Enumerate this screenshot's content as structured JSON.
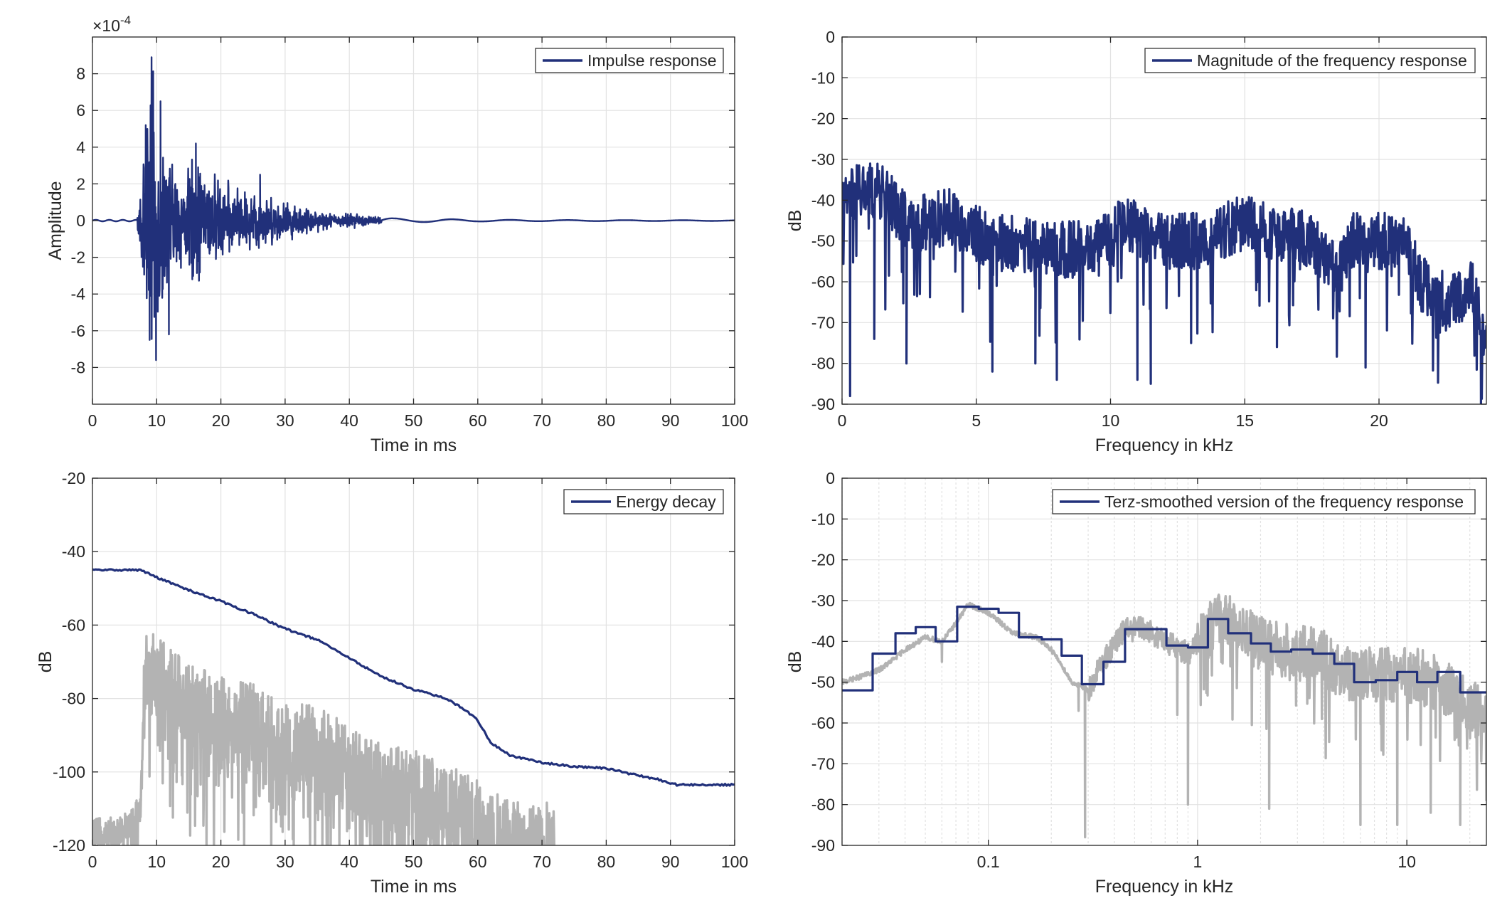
{
  "colors": {
    "series_main": "#21307a",
    "series_gray": "#b3b3b3",
    "axis": "#262626",
    "grid": "#e2e2e2"
  },
  "chart_data": [
    {
      "id": "impulse",
      "type": "line",
      "xlabel": "Time in ms",
      "ylabel": "Amplitude",
      "exponent_label": "×10",
      "exponent_power": "-4",
      "xlim": [
        0,
        100
      ],
      "ylim": [
        -10,
        10
      ],
      "xticks": [
        0,
        10,
        20,
        30,
        40,
        50,
        60,
        70,
        80,
        90,
        100
      ],
      "yticks": [
        -8,
        -6,
        -4,
        -2,
        0,
        2,
        4,
        6,
        8
      ],
      "xscale": "linear",
      "grid": true,
      "legend_position": "top-right",
      "series": [
        {
          "name": "Impulse response",
          "color": "main",
          "style": "oscillation",
          "envelope": [
            [
              0,
              0.06
            ],
            [
              6.8,
              0.1
            ],
            [
              7.5,
              2.5
            ],
            [
              8.4,
              5.2
            ],
            [
              9.2,
              8.9
            ],
            [
              10,
              6.5
            ],
            [
              11,
              5
            ],
            [
              12.5,
              3.5
            ],
            [
              14,
              2.8
            ],
            [
              16,
              4.2
            ],
            [
              17.5,
              3.2
            ],
            [
              19,
              2.8
            ],
            [
              21,
              2.3
            ],
            [
              24,
              1.8
            ],
            [
              26,
              1.9
            ],
            [
              28,
              1.4
            ],
            [
              30,
              1.2
            ],
            [
              33,
              0.9
            ],
            [
              36,
              0.6
            ],
            [
              38,
              0.35
            ],
            [
              40,
              0.5
            ],
            [
              43,
              0.3
            ],
            [
              47,
              0.15
            ],
            [
              50,
              0.1
            ],
            [
              55,
              0.1
            ],
            [
              60,
              0.06
            ],
            [
              70,
              0.04
            ],
            [
              100,
              0.02
            ]
          ],
          "peaks": [
            [
              9.2,
              8.9
            ],
            [
              9.9,
              -7.6
            ],
            [
              10.6,
              6.5
            ],
            [
              11.9,
              -6.2
            ],
            [
              16.1,
              4.2
            ],
            [
              26.1,
              2.5
            ],
            [
              8.9,
              -6.5
            ],
            [
              8.3,
              5.2
            ]
          ]
        }
      ]
    },
    {
      "id": "magnitude",
      "type": "line",
      "xlabel": "Frequency in kHz",
      "ylabel": "dB",
      "xlim": [
        0,
        24
      ],
      "ylim": [
        -90,
        0
      ],
      "xticks": [
        0,
        5,
        10,
        15,
        20
      ],
      "yticks": [
        0,
        -10,
        -20,
        -30,
        -40,
        -50,
        -60,
        -70,
        -80,
        -90
      ],
      "xscale": "linear",
      "grid": true,
      "legend_position": "top-right",
      "series": [
        {
          "name": "Magnitude of the frequency response",
          "color": "main",
          "style": "noisy",
          "baseline": [
            [
              0,
              -42
            ],
            [
              0.5,
              -38
            ],
            [
              1.5,
              -38
            ],
            [
              2.5,
              -46
            ],
            [
              4,
              -44
            ],
            [
              5.5,
              -50
            ],
            [
              8,
              -52
            ],
            [
              9.5,
              -52
            ],
            [
              10.5,
              -46
            ],
            [
              12,
              -50
            ],
            [
              13.5,
              -50
            ],
            [
              15,
              -45
            ],
            [
              16.5,
              -50
            ],
            [
              17,
              -48
            ],
            [
              18.5,
              -57
            ],
            [
              19,
              -50
            ],
            [
              21,
              -50
            ],
            [
              21.5,
              -60
            ],
            [
              22.5,
              -65
            ],
            [
              23.5,
              -62
            ],
            [
              24,
              -75
            ]
          ],
          "dips": [
            [
              0.3,
              -88
            ],
            [
              1.2,
              -74
            ],
            [
              2.4,
              -80
            ],
            [
              5.6,
              -82
            ],
            [
              7.2,
              -80
            ],
            [
              8,
              -84
            ],
            [
              11,
              -84
            ],
            [
              11.5,
              -85
            ],
            [
              13,
              -75
            ],
            [
              16.2,
              -76
            ],
            [
              19.5,
              -81
            ],
            [
              23.8,
              -90
            ]
          ]
        }
      ]
    },
    {
      "id": "energy",
      "type": "line",
      "xlabel": "Time in ms",
      "ylabel": "dB",
      "xlim": [
        0,
        100
      ],
      "ylim": [
        -120,
        -20
      ],
      "xticks": [
        0,
        10,
        20,
        30,
        40,
        50,
        60,
        70,
        80,
        90,
        100
      ],
      "yticks": [
        -20,
        -40,
        -60,
        -80,
        -100,
        -120
      ],
      "xscale": "linear",
      "grid": true,
      "legend_position": "top-right",
      "series": [
        {
          "name": "",
          "color": "gray",
          "style": "noisy",
          "baseline": [
            [
              0,
              -117
            ],
            [
              5,
              -115
            ],
            [
              7.5,
              -110
            ],
            [
              8.2,
              -72
            ],
            [
              10,
              -75
            ],
            [
              15,
              -82
            ],
            [
              20,
              -86
            ],
            [
              25,
              -88
            ],
            [
              30,
              -93
            ],
            [
              35,
              -94
            ],
            [
              40,
              -99
            ],
            [
              45,
              -104
            ],
            [
              50,
              -106
            ],
            [
              55,
              -110
            ],
            [
              58,
              -112
            ],
            [
              62,
              -117
            ],
            [
              65,
              -120
            ],
            [
              68,
              -120
            ],
            [
              72,
              -120
            ]
          ],
          "dips": []
        },
        {
          "name": "Energy decay",
          "color": "main",
          "style": "smooth",
          "points": [
            [
              0,
              -45
            ],
            [
              7.5,
              -45
            ],
            [
              10,
              -47
            ],
            [
              15,
              -50.5
            ],
            [
              20,
              -53.5
            ],
            [
              25,
              -57
            ],
            [
              30,
              -61
            ],
            [
              35,
              -64
            ],
            [
              40,
              -69
            ],
            [
              45,
              -74
            ],
            [
              50,
              -77.5
            ],
            [
              55,
              -80
            ],
            [
              58,
              -83
            ],
            [
              60,
              -86
            ],
            [
              62,
              -92
            ],
            [
              65,
              -95.5
            ],
            [
              70,
              -97.5
            ],
            [
              75,
              -98.5
            ],
            [
              80,
              -99
            ],
            [
              85,
              -101
            ],
            [
              88,
              -102
            ],
            [
              91,
              -103.5
            ],
            [
              100,
              -103.5
            ]
          ]
        }
      ]
    },
    {
      "id": "terz",
      "type": "line",
      "xlabel": "Frequency in kHz",
      "ylabel": "dB",
      "xlim": [
        0.02,
        24
      ],
      "ylim": [
        -90,
        0
      ],
      "xticks": [
        0.1,
        1,
        10
      ],
      "xticklabels": [
        "0.1",
        "1",
        "10"
      ],
      "yticks": [
        0,
        -10,
        -20,
        -30,
        -40,
        -50,
        -60,
        -70,
        -80,
        -90
      ],
      "xscale": "log",
      "grid": true,
      "legend_position": "top-right",
      "series": [
        {
          "name": "",
          "color": "gray",
          "style": "noisy-log",
          "baseline": [
            [
              0.02,
              -50
            ],
            [
              0.03,
              -47
            ],
            [
              0.04,
              -42
            ],
            [
              0.05,
              -39
            ],
            [
              0.06,
              -40
            ],
            [
              0.08,
              -31
            ],
            [
              0.1,
              -33
            ],
            [
              0.13,
              -38
            ],
            [
              0.17,
              -39
            ],
            [
              0.2,
              -42
            ],
            [
              0.25,
              -50
            ],
            [
              0.3,
              -52
            ],
            [
              0.35,
              -45
            ],
            [
              0.45,
              -37
            ],
            [
              0.55,
              -37
            ],
            [
              0.7,
              -40
            ],
            [
              0.9,
              -43
            ],
            [
              1.1,
              -38
            ],
            [
              1.3,
              -34
            ],
            [
              1.6,
              -38
            ],
            [
              2,
              -41
            ],
            [
              3,
              -43
            ],
            [
              4,
              -44
            ],
            [
              5,
              -48
            ],
            [
              7,
              -48
            ],
            [
              10,
              -48
            ],
            [
              14,
              -50
            ],
            [
              20,
              -57
            ],
            [
              24,
              -57
            ]
          ],
          "dips": [
            [
              0.06,
              -45
            ],
            [
              0.29,
              -88
            ],
            [
              0.27,
              -57
            ],
            [
              0.8,
              -58
            ],
            [
              0.9,
              -80
            ],
            [
              2.2,
              -81
            ],
            [
              6,
              -85
            ],
            [
              9,
              -85
            ],
            [
              13,
              -82
            ],
            [
              18,
              -85
            ]
          ]
        },
        {
          "name": "Terz-smoothed version of the frequency response",
          "color": "main",
          "style": "steps",
          "edges": [
            0.02,
            0.028,
            0.036,
            0.045,
            0.056,
            0.071,
            0.09,
            0.112,
            0.14,
            0.18,
            0.224,
            0.28,
            0.355,
            0.45,
            0.56,
            0.71,
            0.9,
            1.12,
            1.4,
            1.8,
            2.24,
            2.8,
            3.55,
            4.5,
            5.6,
            7.1,
            9,
            11.2,
            14,
            18,
            24
          ],
          "values": [
            -52,
            -43,
            -38,
            -36.5,
            -40,
            -31.5,
            -32,
            -33,
            -39,
            -39.5,
            -43.5,
            -50.5,
            -45,
            -37,
            -37,
            -41,
            -41.5,
            -34.5,
            -38,
            -40.5,
            -42.5,
            -42,
            -43,
            -45.5,
            -50,
            -49.5,
            -47.5,
            -50,
            -47.5,
            -52.5
          ]
        }
      ]
    }
  ]
}
